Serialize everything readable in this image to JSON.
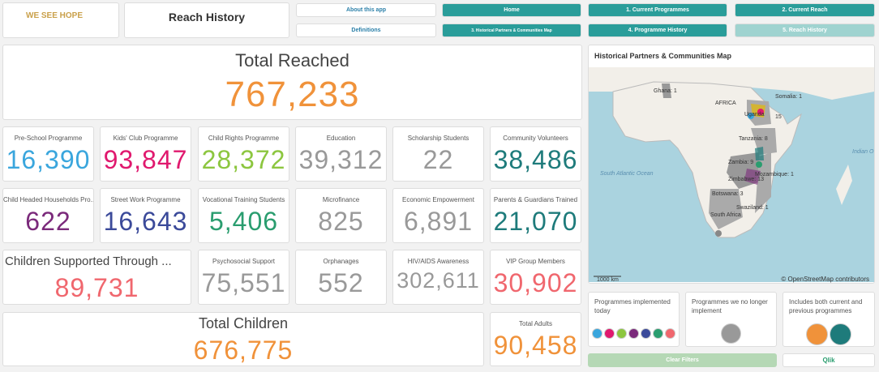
{
  "header": {
    "logo": "WE SEE HOPE",
    "title": "Reach History"
  },
  "nav": [
    "About this app",
    "Home",
    "1. Current Programmes",
    "2. Current Reach",
    "Definitions",
    "3. Historical Partners & Communities Map",
    "4. Programme History",
    "5. Reach History"
  ],
  "total_reached": {
    "label": "Total Reached",
    "value": "767,233",
    "color": "#f0923a"
  },
  "kpis": [
    {
      "label": "Pre-School Programme",
      "value": "16,390",
      "color": "#3aa6dd"
    },
    {
      "label": "Kids' Club Programme",
      "value": "93,847",
      "color": "#e0196e"
    },
    {
      "label": "Child Rights Programme",
      "value": "28,372",
      "color": "#8cc63f"
    },
    {
      "label": "Education",
      "value": "39,312",
      "color": "#999999"
    },
    {
      "label": "Scholarship Students",
      "value": "22",
      "color": "#999999"
    },
    {
      "label": "Community Volunteers",
      "value": "38,486",
      "color": "#1e7b7b"
    },
    {
      "label": "Child Headed Households Pro...",
      "value": "622",
      "color": "#7b2a7b"
    },
    {
      "label": "Street Work Programme",
      "value": "16,643",
      "color": "#3b4a9a"
    },
    {
      "label": "Vocational Training Students",
      "value": "5,406",
      "color": "#2a9d6f"
    },
    {
      "label": "Microfinance",
      "value": "825",
      "color": "#999999"
    },
    {
      "label": "Economic Empowerment",
      "value": "6,891",
      "color": "#999999"
    },
    {
      "label": "Parents & Guardians Trained",
      "value": "21,070",
      "color": "#1e7b7b"
    },
    {
      "label": "Children Supported Through ...",
      "value": "89,731",
      "color": "#f0676e"
    },
    {
      "label": "Psychosocial Support",
      "value": "75,551",
      "color": "#999999"
    },
    {
      "label": "Orphanages",
      "value": "552",
      "color": "#999999"
    },
    {
      "label": "HIV/AIDS Awareness",
      "value": "302,611",
      "color": "#999999"
    },
    {
      "label": "VIP Group Members",
      "value": "30,902",
      "color": "#f0676e"
    }
  ],
  "total_children": {
    "label": "Total Children",
    "value": "676,775",
    "color": "#f0923a"
  },
  "total_adults": {
    "label": "Total Adults",
    "value": "90,458",
    "color": "#f0923a"
  },
  "map": {
    "title": "Historical Partners & Communities Map",
    "labels": [
      "Ghana: 1",
      "AFRICA",
      "Somalia: 1",
      "Uganda",
      "15",
      "Tanzania: 8",
      "South Atlantic Ocean",
      "Indian O",
      "Zambia: 9",
      "Mozambique: 1",
      "Zimbabwe: 13",
      "Botswana: 3",
      "South Africa",
      "Swaziland: 1"
    ],
    "scale": "1000 km",
    "attribution": "© OpenStreetMap contributors"
  },
  "legend": [
    {
      "text": "Programmes implemented today",
      "colors": [
        "#3aa6dd",
        "#e0196e",
        "#8cc63f",
        "#7b2a7b",
        "#3b4a9a",
        "#2a9d6f",
        "#f0676e"
      ]
    },
    {
      "text": "Programmes we no longer implement",
      "colors": [
        "#999999"
      ]
    },
    {
      "text": "Includes both current and previous programmes",
      "colors": [
        "#f0923a",
        "#1e7b7b"
      ]
    }
  ],
  "clear_filters": "Clear Filters",
  "qlik": "Qlik"
}
